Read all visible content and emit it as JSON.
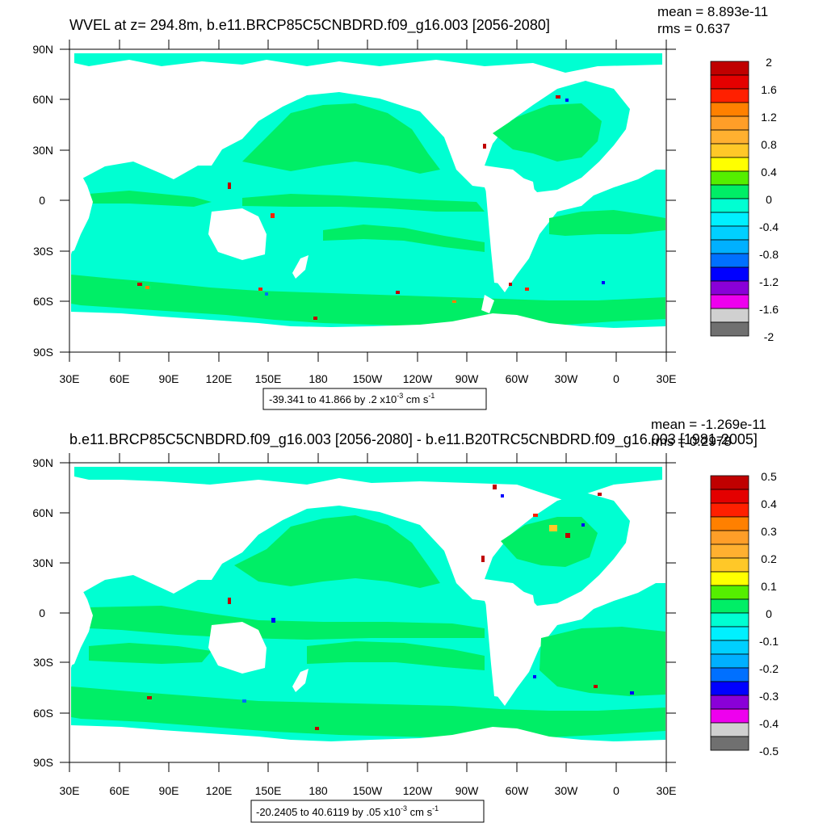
{
  "panels": [
    {
      "title": "WVEL at z= 294.8m, b.e11.BRCP85C5CNBDRD.f09_g16.003 [2056-2080]",
      "stats": {
        "mean": "mean = 8.893e-11",
        "rms": "rms = 0.637"
      },
      "range_text": "-39.341 to 41.866 by .2 x10",
      "range_exp": "-3",
      "range_unit": " cm s",
      "range_unit_exp": "-1",
      "colorbar_labels": [
        "2",
        "1.6",
        "1.2",
        "0.8",
        "0.4",
        "0",
        "-0.4",
        "-0.8",
        "-1.2",
        "-1.6",
        "-2"
      ]
    },
    {
      "title": "b.e11.BRCP85C5CNBDRD.f09_g16.003 [2056-2080] - b.e11.B20TRC5CNBDRD.f09_g16.003 [1981-2005]",
      "stats": {
        "mean": "mean = -1.269e-11",
        "rms": "rms = 0.2978"
      },
      "range_text": "-20.2405 to 40.6119 by .05 x10",
      "range_exp": "-3",
      "range_unit": " cm s",
      "range_unit_exp": "-1",
      "colorbar_labels": [
        "0.5",
        "0.4",
        "0.3",
        "0.2",
        "0.1",
        "0",
        "-0.1",
        "-0.2",
        "-0.3",
        "-0.4",
        "-0.5"
      ]
    }
  ],
  "lat_labels": [
    "90N",
    "60N",
    "30N",
    "0",
    "30S",
    "60S",
    "90S"
  ],
  "lon_labels": [
    "30E",
    "60E",
    "90E",
    "120E",
    "150E",
    "180",
    "150W",
    "120W",
    "90W",
    "60W",
    "30W",
    "0",
    "30E"
  ],
  "colors": {
    "ocean_base": "#00ffd2",
    "ocean_pos": "#00ee66",
    "colorbar": [
      "#c00000",
      "#e40000",
      "#ff2000",
      "#ff8000",
      "#ff9e28",
      "#ffc828",
      "#ffff00",
      "#55ee00",
      "#00ee66",
      "#00ffd2",
      "#00e8ff",
      "#00b0ff",
      "#0070ff",
      "#0000ff",
      "#8a00d8",
      "#ee00ee",
      "#d0d0d0",
      "#707070"
    ]
  }
}
